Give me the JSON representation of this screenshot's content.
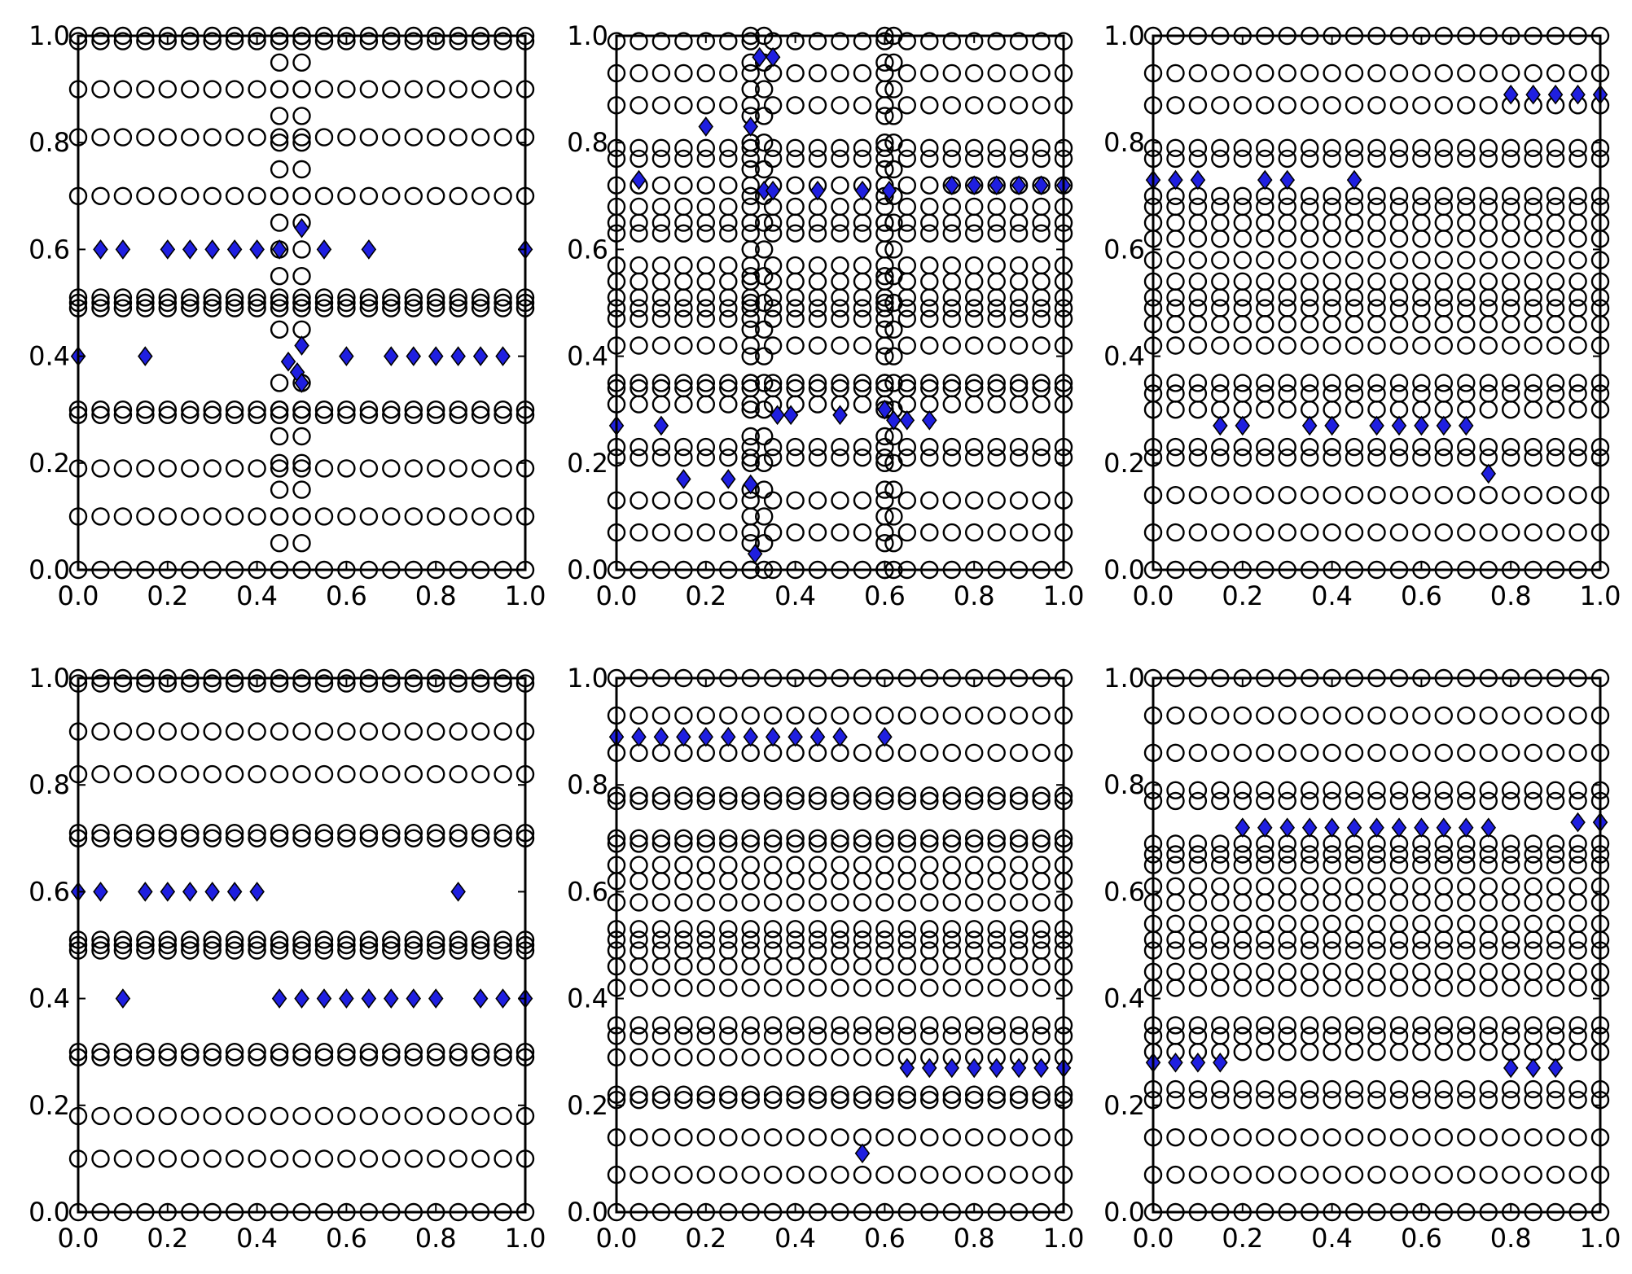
{
  "figure": {
    "title": "",
    "colors": {
      "circle_stroke": "#000000",
      "diamond_fill": "#1f1fe0",
      "frame": "#000000",
      "background": "#ffffff"
    }
  },
  "chart_data": [
    {
      "type": "scatter",
      "title": "",
      "xlabel": "",
      "ylabel": "",
      "xlim": [
        0,
        1
      ],
      "ylim": [
        0,
        1
      ],
      "grid": false,
      "legend": "none",
      "xticks": [
        "0.0",
        "0.2",
        "0.4",
        "0.6",
        "0.8",
        "1.0"
      ],
      "yticks": [
        "0.0",
        "0.2",
        "0.4",
        "0.6",
        "0.8",
        "1.0"
      ],
      "circles": {
        "rows": [
          0.0,
          0.1,
          0.19,
          0.29,
          0.3,
          0.49,
          0.5,
          0.51,
          0.7,
          0.81,
          0.9,
          0.99,
          1.0
        ],
        "x_step": 0.05,
        "column_x": [
          0.45,
          0.5
        ],
        "column_y": [
          0.0,
          0.05,
          0.1,
          0.15,
          0.2,
          0.25,
          0.3,
          0.35,
          0.45,
          0.5,
          0.55,
          0.6,
          0.65,
          0.7,
          0.75,
          0.8,
          0.85,
          0.9,
          0.95,
          1.0
        ]
      },
      "diamonds": [
        [
          0.0,
          0.4
        ],
        [
          0.05,
          0.6
        ],
        [
          0.1,
          0.6
        ],
        [
          0.15,
          0.4
        ],
        [
          0.2,
          0.6
        ],
        [
          0.25,
          0.6
        ],
        [
          0.3,
          0.6
        ],
        [
          0.35,
          0.6
        ],
        [
          0.4,
          0.6
        ],
        [
          0.45,
          0.6
        ],
        [
          0.47,
          0.39
        ],
        [
          0.49,
          0.37
        ],
        [
          0.5,
          0.35
        ],
        [
          0.5,
          0.42
        ],
        [
          0.5,
          0.64
        ],
        [
          0.55,
          0.6
        ],
        [
          0.6,
          0.4
        ],
        [
          0.65,
          0.6
        ],
        [
          0.7,
          0.4
        ],
        [
          0.75,
          0.4
        ],
        [
          0.8,
          0.4
        ],
        [
          0.85,
          0.4
        ],
        [
          0.9,
          0.4
        ],
        [
          0.95,
          0.4
        ],
        [
          1.0,
          0.6
        ]
      ]
    },
    {
      "type": "scatter",
      "title": "",
      "xlabel": "",
      "ylabel": "",
      "xlim": [
        0,
        1
      ],
      "ylim": [
        0,
        1
      ],
      "grid": false,
      "legend": "none",
      "xticks": [
        "0.0",
        "0.2",
        "0.4",
        "0.6",
        "0.8",
        "1.0"
      ],
      "yticks": [
        "0.0",
        "0.2",
        "0.4",
        "0.6",
        "0.8",
        "1.0"
      ],
      "circles": {
        "rows": [
          0.0,
          0.07,
          0.13,
          0.21,
          0.23,
          0.31,
          0.34,
          0.35,
          0.42,
          0.47,
          0.49,
          0.51,
          0.54,
          0.57,
          0.63,
          0.65,
          0.68,
          0.72,
          0.77,
          0.79,
          0.87,
          0.93,
          0.99
        ],
        "x_step": 0.05,
        "column_x": [
          0.3,
          0.33,
          0.6,
          0.62
        ],
        "column_y": [
          0.0,
          0.05,
          0.1,
          0.15,
          0.2,
          0.25,
          0.3,
          0.35,
          0.4,
          0.45,
          0.5,
          0.55,
          0.6,
          0.65,
          0.7,
          0.75,
          0.8,
          0.85,
          0.9,
          0.95,
          1.0
        ]
      },
      "diamonds": [
        [
          0.0,
          0.27
        ],
        [
          0.05,
          0.73
        ],
        [
          0.1,
          0.27
        ],
        [
          0.15,
          0.17
        ],
        [
          0.2,
          0.83
        ],
        [
          0.25,
          0.17
        ],
        [
          0.3,
          0.83
        ],
        [
          0.3,
          0.16
        ],
        [
          0.31,
          0.03
        ],
        [
          0.32,
          0.96
        ],
        [
          0.33,
          0.71
        ],
        [
          0.35,
          0.96
        ],
        [
          0.35,
          0.71
        ],
        [
          0.36,
          0.29
        ],
        [
          0.39,
          0.29
        ],
        [
          0.45,
          0.71
        ],
        [
          0.5,
          0.29
        ],
        [
          0.55,
          0.71
        ],
        [
          0.6,
          0.3
        ],
        [
          0.61,
          0.71
        ],
        [
          0.62,
          0.28
        ],
        [
          0.65,
          0.28
        ],
        [
          0.7,
          0.28
        ],
        [
          0.75,
          0.72
        ],
        [
          0.8,
          0.72
        ],
        [
          0.85,
          0.72
        ],
        [
          0.9,
          0.72
        ],
        [
          0.95,
          0.72
        ],
        [
          1.0,
          0.72
        ]
      ]
    },
    {
      "type": "scatter",
      "title": "",
      "xlabel": "",
      "ylabel": "",
      "xlim": [
        0,
        1
      ],
      "ylim": [
        0,
        1
      ],
      "grid": false,
      "legend": "none",
      "xticks": [
        "0.0",
        "0.2",
        "0.4",
        "0.6",
        "0.8",
        "1.0"
      ],
      "yticks": [
        "0.0",
        "0.2",
        "0.4",
        "0.6",
        "0.8",
        "1.0"
      ],
      "circles": {
        "rows": [
          0.0,
          0.07,
          0.14,
          0.21,
          0.23,
          0.3,
          0.33,
          0.35,
          0.42,
          0.46,
          0.49,
          0.51,
          0.54,
          0.58,
          0.62,
          0.65,
          0.68,
          0.7,
          0.77,
          0.79,
          0.87,
          0.93,
          1.0
        ],
        "x_step": 0.05,
        "column_x": [],
        "column_y": []
      },
      "diamonds": [
        [
          0.0,
          0.73
        ],
        [
          0.05,
          0.73
        ],
        [
          0.1,
          0.73
        ],
        [
          0.25,
          0.73
        ],
        [
          0.3,
          0.73
        ],
        [
          0.45,
          0.73
        ],
        [
          0.15,
          0.27
        ],
        [
          0.2,
          0.27
        ],
        [
          0.35,
          0.27
        ],
        [
          0.4,
          0.27
        ],
        [
          0.5,
          0.27
        ],
        [
          0.55,
          0.27
        ],
        [
          0.6,
          0.27
        ],
        [
          0.65,
          0.27
        ],
        [
          0.7,
          0.27
        ],
        [
          0.75,
          0.18
        ],
        [
          0.8,
          0.89
        ],
        [
          0.85,
          0.89
        ],
        [
          0.9,
          0.89
        ],
        [
          0.95,
          0.89
        ],
        [
          1.0,
          0.89
        ]
      ]
    },
    {
      "type": "scatter",
      "title": "",
      "xlabel": "",
      "ylabel": "",
      "xlim": [
        0,
        1
      ],
      "ylim": [
        0,
        1
      ],
      "grid": false,
      "legend": "none",
      "xticks": [
        "0.0",
        "0.2",
        "0.4",
        "0.6",
        "0.8",
        "1.0"
      ],
      "yticks": [
        "0.0",
        "0.2",
        "0.4",
        "0.6",
        "0.8",
        "1.0"
      ],
      "circles": {
        "rows": [
          0.0,
          0.1,
          0.18,
          0.29,
          0.3,
          0.49,
          0.5,
          0.51,
          0.7,
          0.71,
          0.82,
          0.9,
          0.99,
          1.0
        ],
        "x_step": 0.05,
        "column_x": [],
        "column_y": []
      },
      "diamonds": [
        [
          0.0,
          0.6
        ],
        [
          0.05,
          0.6
        ],
        [
          0.15,
          0.6
        ],
        [
          0.2,
          0.6
        ],
        [
          0.25,
          0.6
        ],
        [
          0.3,
          0.6
        ],
        [
          0.35,
          0.6
        ],
        [
          0.4,
          0.6
        ],
        [
          0.85,
          0.6
        ],
        [
          0.1,
          0.4
        ],
        [
          0.45,
          0.4
        ],
        [
          0.5,
          0.4
        ],
        [
          0.55,
          0.4
        ],
        [
          0.6,
          0.4
        ],
        [
          0.65,
          0.4
        ],
        [
          0.7,
          0.4
        ],
        [
          0.75,
          0.4
        ],
        [
          0.8,
          0.4
        ],
        [
          0.9,
          0.4
        ],
        [
          0.95,
          0.4
        ],
        [
          1.0,
          0.4
        ]
      ]
    },
    {
      "type": "scatter",
      "title": "",
      "xlabel": "",
      "ylabel": "",
      "xlim": [
        0,
        1
      ],
      "ylim": [
        0,
        1
      ],
      "grid": false,
      "legend": "none",
      "xticks": [
        "0.0",
        "0.2",
        "0.4",
        "0.6",
        "0.8",
        "1.0"
      ],
      "yticks": [
        "0.0",
        "0.2",
        "0.4",
        "0.6",
        "0.8",
        "1.0"
      ],
      "circles": {
        "rows": [
          0.0,
          0.07,
          0.14,
          0.21,
          0.22,
          0.29,
          0.33,
          0.35,
          0.42,
          0.46,
          0.49,
          0.51,
          0.53,
          0.58,
          0.62,
          0.65,
          0.69,
          0.7,
          0.77,
          0.78,
          0.86,
          0.93,
          1.0
        ],
        "x_step": 0.05,
        "column_x": [],
        "column_y": []
      },
      "diamonds": [
        [
          0.0,
          0.89
        ],
        [
          0.05,
          0.89
        ],
        [
          0.1,
          0.89
        ],
        [
          0.15,
          0.89
        ],
        [
          0.2,
          0.89
        ],
        [
          0.25,
          0.89
        ],
        [
          0.3,
          0.89
        ],
        [
          0.35,
          0.89
        ],
        [
          0.4,
          0.89
        ],
        [
          0.45,
          0.89
        ],
        [
          0.5,
          0.89
        ],
        [
          0.6,
          0.89
        ],
        [
          0.65,
          0.27
        ],
        [
          0.7,
          0.27
        ],
        [
          0.75,
          0.27
        ],
        [
          0.8,
          0.27
        ],
        [
          0.85,
          0.27
        ],
        [
          0.9,
          0.27
        ],
        [
          0.95,
          0.27
        ],
        [
          1.0,
          0.27
        ],
        [
          0.55,
          0.11
        ]
      ]
    },
    {
      "type": "scatter",
      "title": "",
      "xlabel": "",
      "ylabel": "",
      "xlim": [
        0,
        1
      ],
      "ylim": [
        0,
        1
      ],
      "grid": false,
      "legend": "none",
      "xticks": [
        "0.0",
        "0.2",
        "0.4",
        "0.6",
        "0.8",
        "1.0"
      ],
      "yticks": [
        "0.0",
        "0.2",
        "0.4",
        "0.6",
        "0.8",
        "1.0"
      ],
      "circles": {
        "rows": [
          0.0,
          0.07,
          0.14,
          0.21,
          0.23,
          0.3,
          0.33,
          0.35,
          0.42,
          0.45,
          0.49,
          0.51,
          0.54,
          0.58,
          0.61,
          0.65,
          0.67,
          0.69,
          0.77,
          0.79,
          0.86,
          0.93,
          1.0
        ],
        "x_step": 0.05,
        "column_x": [],
        "column_y": []
      },
      "diamonds": [
        [
          0.2,
          0.72
        ],
        [
          0.25,
          0.72
        ],
        [
          0.3,
          0.72
        ],
        [
          0.35,
          0.72
        ],
        [
          0.4,
          0.72
        ],
        [
          0.45,
          0.72
        ],
        [
          0.5,
          0.72
        ],
        [
          0.55,
          0.72
        ],
        [
          0.6,
          0.72
        ],
        [
          0.65,
          0.72
        ],
        [
          0.7,
          0.72
        ],
        [
          0.75,
          0.72
        ],
        [
          0.95,
          0.73
        ],
        [
          1.0,
          0.73
        ],
        [
          0.0,
          0.28
        ],
        [
          0.05,
          0.28
        ],
        [
          0.1,
          0.28
        ],
        [
          0.15,
          0.28
        ],
        [
          0.8,
          0.27
        ],
        [
          0.85,
          0.27
        ],
        [
          0.9,
          0.27
        ]
      ]
    }
  ]
}
